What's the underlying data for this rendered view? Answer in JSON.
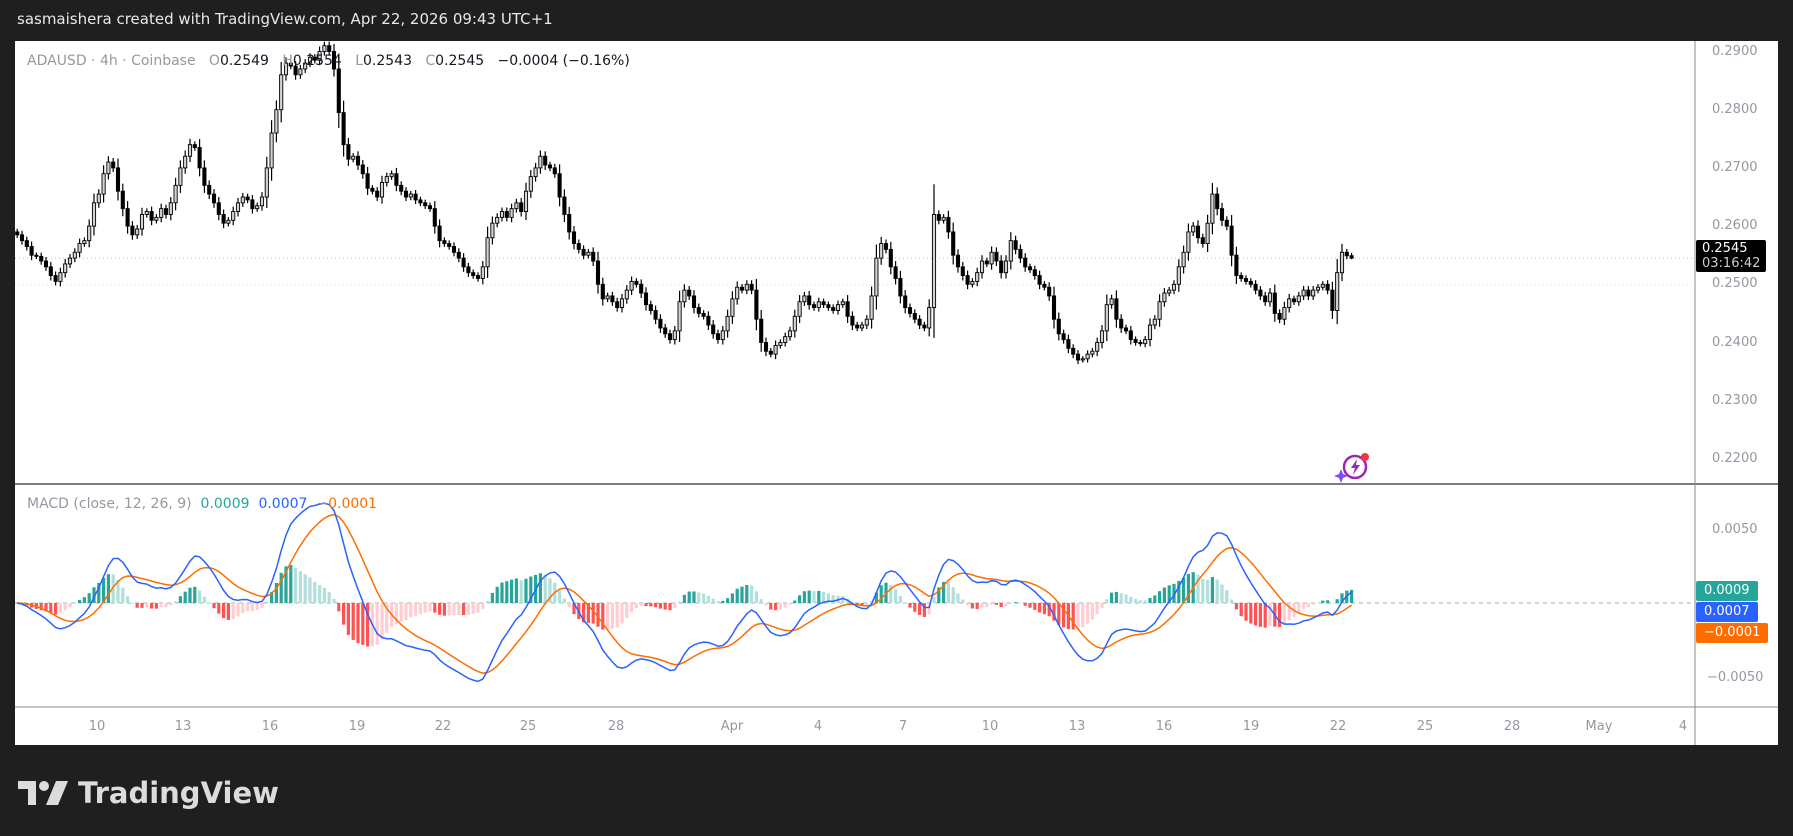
{
  "header": {
    "caption": "sasmaishera created with TradingView.com, Apr 22, 2026 09:43 UTC+1"
  },
  "legend": {
    "symbol": "ADAUSD · 4h · Coinbase",
    "o_label": "O",
    "o": "0.2549",
    "h_label": "H",
    "h": "0.2554",
    "l_label": "L",
    "l": "0.2543",
    "c_label": "C",
    "c": "0.2545",
    "change": "−0.0004 (−0.16%)"
  },
  "price_axis": {
    "labels": [
      "0.2900",
      "0.2800",
      "0.2700",
      "0.2600",
      "0.2500",
      "0.2400",
      "0.2300",
      "0.2200"
    ],
    "last_price": "0.2545",
    "countdown": "03:16:42"
  },
  "macd": {
    "title": "MACD (close, 12, 26, 9)",
    "histogram": "0.0009",
    "macd": "0.0007",
    "signal": "−0.0001",
    "axis_labels": [
      "0.0050",
      "−0.0050"
    ],
    "colors": {
      "macd": "#2962ff",
      "signal": "#ff6d00",
      "hist_up": "#26a69a",
      "hist_up_weak": "#b2dfdb",
      "hist_down": "#ff5252",
      "hist_down_weak": "#ffcdd2"
    }
  },
  "time_axis": {
    "labels": [
      "10",
      "13",
      "16",
      "19",
      "22",
      "25",
      "28",
      "Apr",
      "4",
      "7",
      "10",
      "13",
      "16",
      "19",
      "22",
      "25",
      "28",
      "May",
      "4"
    ]
  },
  "logo": {
    "text": "TradingView"
  },
  "chart_data": {
    "type": "candlestick",
    "symbol": "ADAUSD",
    "interval": "4h",
    "exchange": "Coinbase",
    "ylim": [
      0.216,
      0.292
    ],
    "xrange": [
      "Mar 7",
      "May 5"
    ],
    "last_candle": {
      "open": 0.2549,
      "high": 0.2554,
      "low": 0.2543,
      "close": 0.2545
    },
    "closes": [
      0.2585,
      0.2575,
      0.2565,
      0.255,
      0.2548,
      0.254,
      0.253,
      0.2515,
      0.2505,
      0.252,
      0.2535,
      0.2545,
      0.2555,
      0.257,
      0.2575,
      0.26,
      0.264,
      0.2655,
      0.269,
      0.271,
      0.27,
      0.266,
      0.263,
      0.26,
      0.2585,
      0.2595,
      0.262,
      0.2625,
      0.261,
      0.2615,
      0.263,
      0.262,
      0.264,
      0.267,
      0.27,
      0.272,
      0.274,
      0.2735,
      0.27,
      0.267,
      0.2655,
      0.264,
      0.262,
      0.2605,
      0.261,
      0.2625,
      0.264,
      0.265,
      0.2645,
      0.263,
      0.2635,
      0.265,
      0.27,
      0.276,
      0.28,
      0.286,
      0.288,
      0.2875,
      0.286,
      0.287,
      0.288,
      0.289,
      0.2885,
      0.29,
      0.291,
      0.29,
      0.287,
      0.2795,
      0.274,
      0.2715,
      0.272,
      0.2705,
      0.269,
      0.2665,
      0.266,
      0.265,
      0.2675,
      0.2685,
      0.269,
      0.267,
      0.266,
      0.265,
      0.2655,
      0.2645,
      0.264,
      0.2635,
      0.263,
      0.26,
      0.2575,
      0.257,
      0.2565,
      0.2555,
      0.2545,
      0.253,
      0.252,
      0.2515,
      0.251,
      0.253,
      0.258,
      0.2605,
      0.2615,
      0.2625,
      0.2615,
      0.263,
      0.264,
      0.2625,
      0.266,
      0.2685,
      0.27,
      0.272,
      0.2705,
      0.27,
      0.269,
      0.265,
      0.262,
      0.259,
      0.257,
      0.256,
      0.255,
      0.2555,
      0.254,
      0.25,
      0.2475,
      0.248,
      0.247,
      0.246,
      0.2475,
      0.249,
      0.2505,
      0.25,
      0.2485,
      0.2465,
      0.2455,
      0.244,
      0.2425,
      0.2415,
      0.2405,
      0.242,
      0.247,
      0.249,
      0.248,
      0.246,
      0.245,
      0.2445,
      0.243,
      0.2415,
      0.2405,
      0.242,
      0.2445,
      0.2475,
      0.2495,
      0.249,
      0.25,
      0.249,
      0.244,
      0.24,
      0.2385,
      0.238,
      0.2395,
      0.24,
      0.241,
      0.242,
      0.2445,
      0.247,
      0.248,
      0.2465,
      0.246,
      0.247,
      0.2465,
      0.246,
      0.2455,
      0.2465,
      0.247,
      0.2445,
      0.243,
      0.2425,
      0.243,
      0.244,
      0.248,
      0.2545,
      0.257,
      0.256,
      0.253,
      0.251,
      0.248,
      0.246,
      0.245,
      0.244,
      0.243,
      0.2425,
      0.246,
      0.262,
      0.261,
      0.2615,
      0.259,
      0.255,
      0.253,
      0.2515,
      0.25,
      0.2505,
      0.252,
      0.254,
      0.2535,
      0.2555,
      0.254,
      0.252,
      0.254,
      0.2575,
      0.256,
      0.2545,
      0.253,
      0.2525,
      0.2515,
      0.25,
      0.2495,
      0.248,
      0.244,
      0.2415,
      0.2405,
      0.239,
      0.238,
      0.237,
      0.2372,
      0.238,
      0.2385,
      0.24,
      0.242,
      0.2465,
      0.2475,
      0.244,
      0.2425,
      0.242,
      0.2405,
      0.24,
      0.2398,
      0.2405,
      0.243,
      0.244,
      0.247,
      0.2485,
      0.249,
      0.25,
      0.253,
      0.2555,
      0.259,
      0.26,
      0.258,
      0.257,
      0.2605,
      0.2655,
      0.263,
      0.261,
      0.26,
      0.255,
      0.2515,
      0.251,
      0.2505,
      0.25,
      0.249,
      0.248,
      0.247,
      0.2485,
      0.245,
      0.244,
      0.246,
      0.2475,
      0.247,
      0.248,
      0.249,
      0.248,
      0.249,
      0.2495,
      0.25,
      0.249,
      0.2455,
      0.252,
      0.2555,
      0.2549,
      0.2545
    ]
  }
}
